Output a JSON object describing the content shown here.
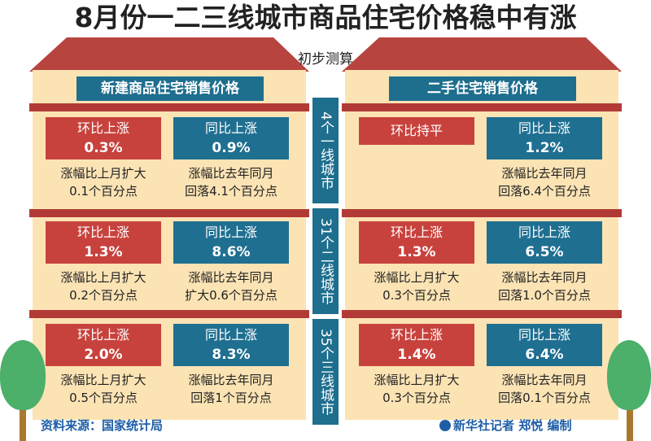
{
  "title": "8月份一二三线城市商品住宅价格稳中有涨",
  "subtitle": "初步测算",
  "left_header": "新建商品住宅销售价格",
  "right_header": "二手住宅销售价格",
  "rows": [
    {
      "city_label": "4个一线城市",
      "new": {
        "mom": {
          "label": "环比上涨",
          "value": "0.3%",
          "note1": "涨幅比上月扩大",
          "note2": "0.1个百分点"
        },
        "yoy": {
          "label": "同比上涨",
          "value": "0.9%",
          "note1": "涨幅比去年同月",
          "note2": "回落4.1个百分点"
        }
      },
      "used": {
        "mom": {
          "label": "环比持平",
          "value": "",
          "note1": "",
          "note2": ""
        },
        "yoy": {
          "label": "同比上涨",
          "value": "1.2%",
          "note1": "涨幅比去年同月",
          "note2": "回落6.4个百分点"
        }
      }
    },
    {
      "city_label": "31个二线城市",
      "new": {
        "mom": {
          "label": "环比上涨",
          "value": "1.3%",
          "note1": "涨幅比上月扩大",
          "note2": "0.2个百分点"
        },
        "yoy": {
          "label": "同比上涨",
          "value": "8.6%",
          "note1": "涨幅比去年同月",
          "note2": "扩大0.6个百分点"
        }
      },
      "used": {
        "mom": {
          "label": "环比上涨",
          "value": "1.3%",
          "note1": "涨幅比上月扩大",
          "note2": "0.3个百分点"
        },
        "yoy": {
          "label": "同比上涨",
          "value": "6.5%",
          "note1": "涨幅比去年同月",
          "note2": "回落1.0个百分点"
        }
      }
    },
    {
      "city_label": "35个三线城市",
      "new": {
        "mom": {
          "label": "环比上涨",
          "value": "2.0%",
          "note1": "涨幅比上月扩大",
          "note2": "0.5个百分点"
        },
        "yoy": {
          "label": "同比上涨",
          "value": "8.3%",
          "note1": "涨幅比去年同月",
          "note2": "回落1个百分点"
        }
      },
      "used": {
        "mom": {
          "label": "环比上涨",
          "value": "1.4%",
          "note1": "涨幅比上月扩大",
          "note2": "0.3个百分点"
        },
        "yoy": {
          "label": "同比上涨",
          "value": "6.4%",
          "note1": "涨幅比去年同月",
          "note2": "回落0.1个百分点"
        }
      }
    }
  ],
  "source": "资料来源：国家统计局",
  "credit": "新华社记者 郑悦 编制",
  "colors": {
    "red": "#c8423d",
    "blue": "#1f6f91",
    "panel": "#fbe3b4",
    "beam": "#b23a36",
    "roof": "#b8443f"
  }
}
